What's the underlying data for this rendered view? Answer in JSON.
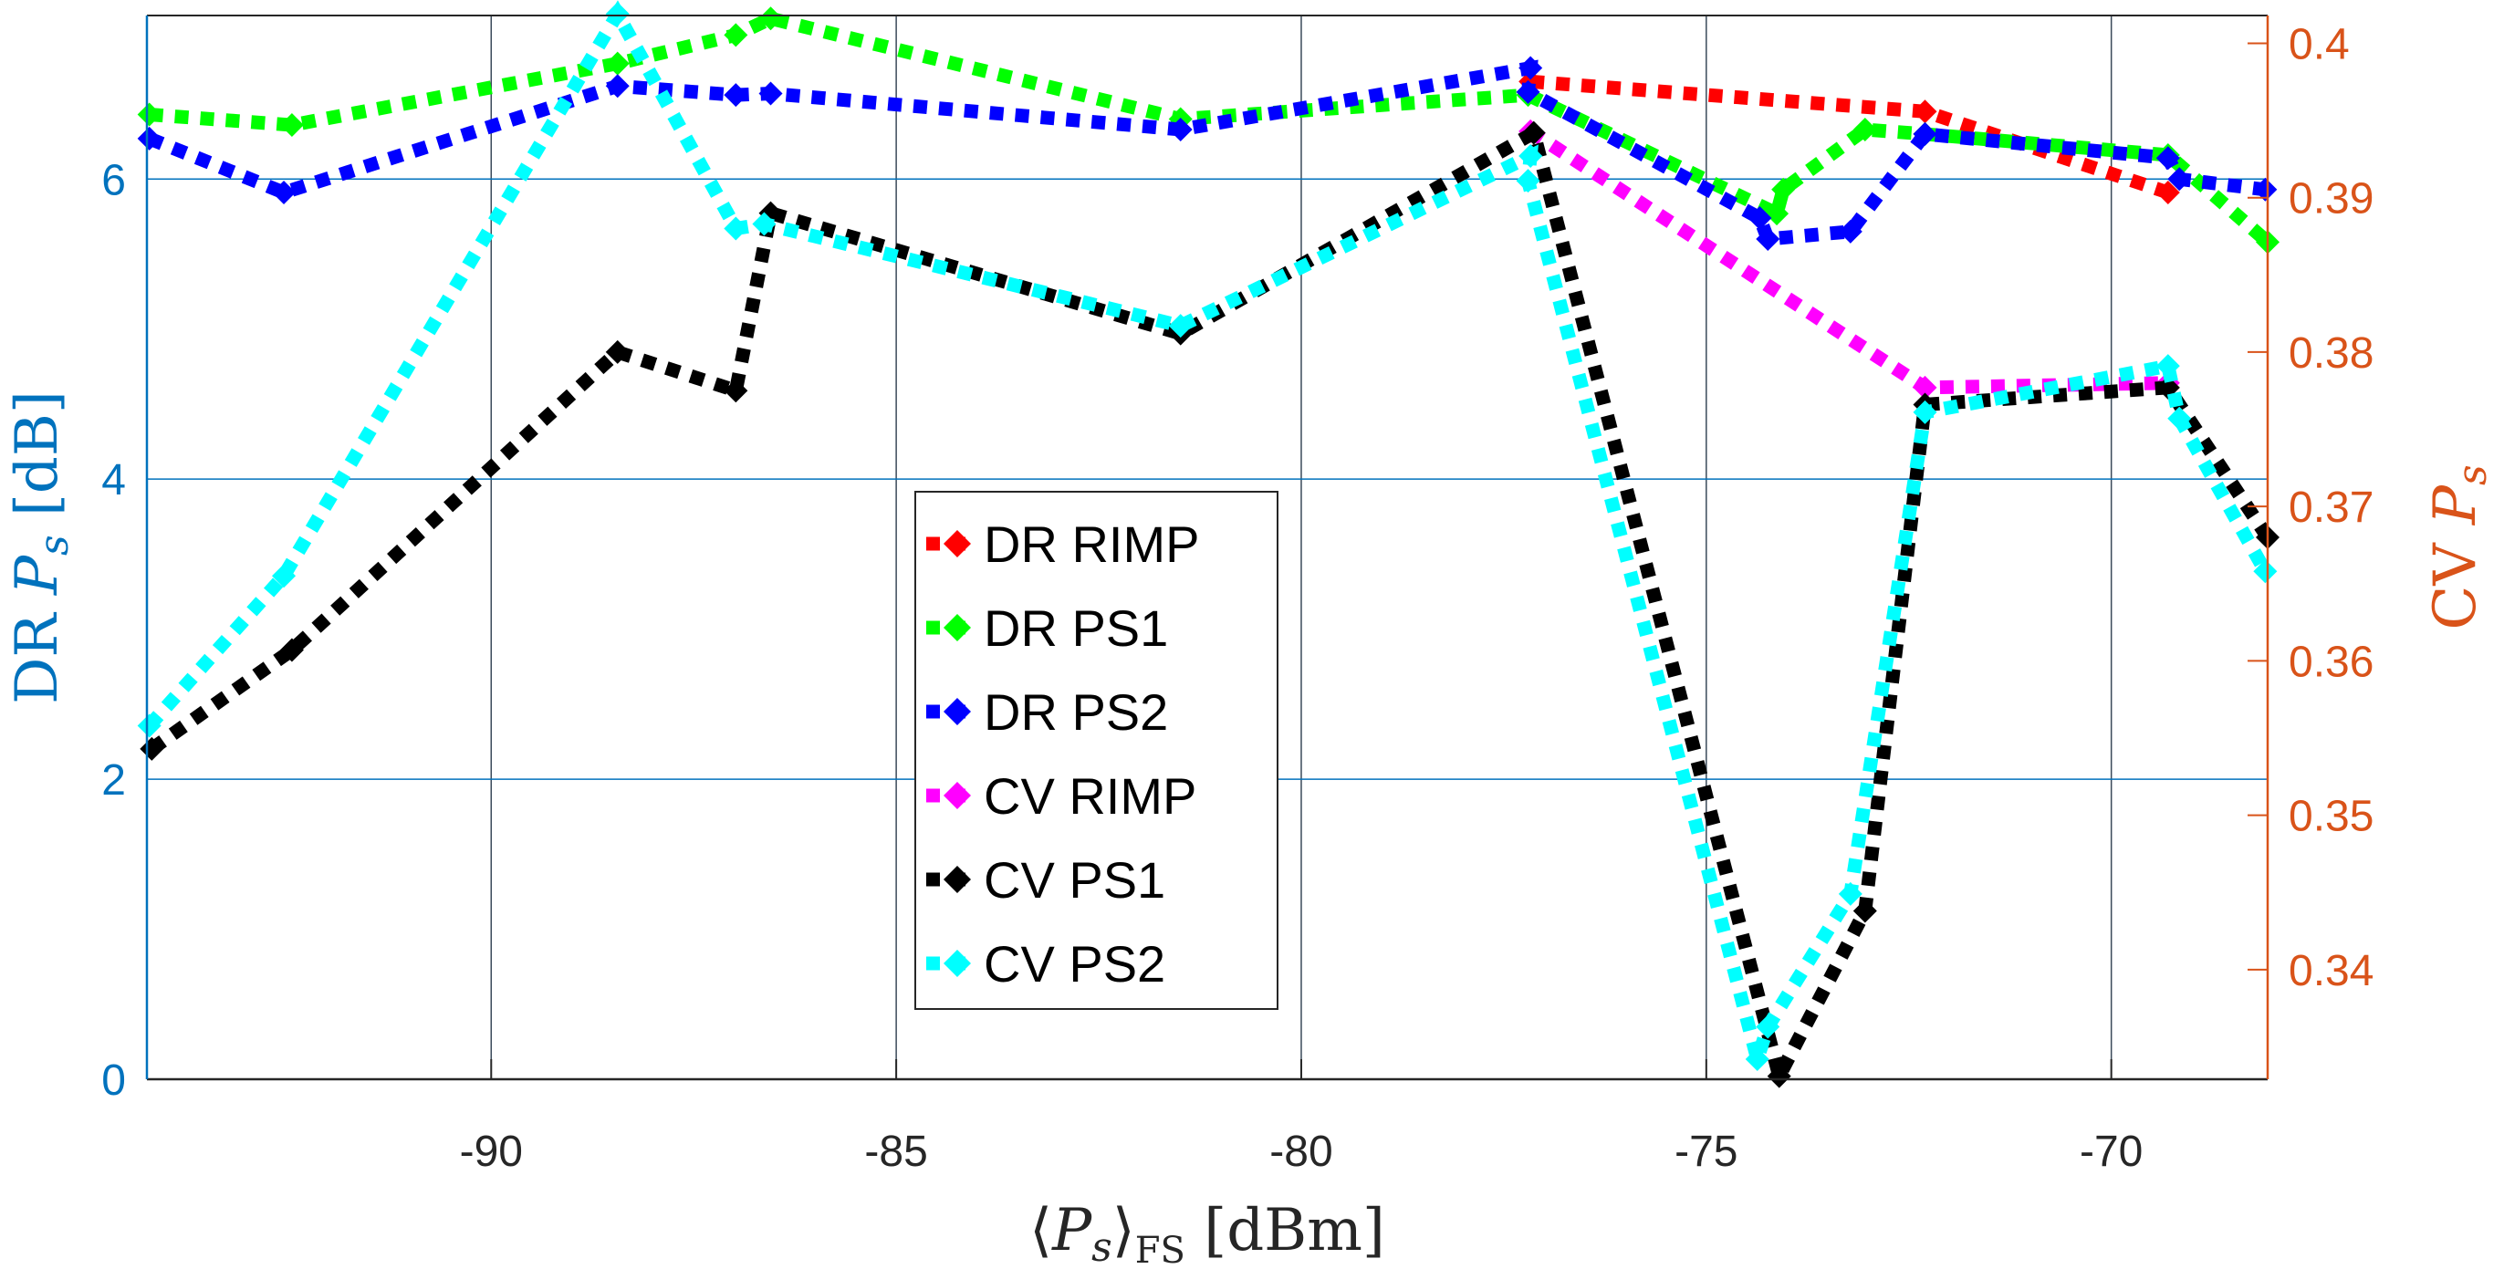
{
  "chart_data": {
    "type": "line",
    "title": "",
    "xlabel": {
      "open": "⟨",
      "var": "P",
      "sub": "s",
      "close": "⟩",
      "sub2": "FS",
      "unit": " [dBm]"
    },
    "ylabel_left": {
      "prefix": "DR ",
      "var": "P",
      "sub": "s",
      "unit": " [dB]"
    },
    "ylabel_right": {
      "prefix": "CV ",
      "var": "P",
      "sub": "s"
    },
    "xlim": [
      -94.25,
      -68.07
    ],
    "ylim_left": [
      0,
      7.09
    ],
    "ylim_right": [
      0.3329,
      0.4018
    ],
    "xticks": [
      "-90",
      "-85",
      "-80",
      "-75",
      "-70"
    ],
    "xtick_values": [
      -90,
      -85,
      -80,
      -75,
      -70
    ],
    "yticks_left": [
      "0",
      "2",
      "4",
      "6"
    ],
    "ytick_left_values": [
      0,
      2,
      4,
      6
    ],
    "yticks_right": [
      "0.34",
      "0.35",
      "0.36",
      "0.37",
      "0.38",
      "0.39",
      "0.4"
    ],
    "ytick_right_values": [
      0.34,
      0.35,
      0.36,
      0.37,
      0.38,
      0.39,
      0.4
    ],
    "grid": true,
    "legend_position": "center",
    "colors": {
      "left_axis": "#0072BD",
      "right_axis": "#D95319"
    },
    "series": [
      {
        "name": "DR RIMP",
        "axis": "left",
        "color": "#FF0000",
        "x": [
          -77.17,
          -72.3,
          -69.3
        ],
        "y": [
          6.65,
          6.45,
          5.91
        ]
      },
      {
        "name": "DR PS1",
        "axis": "left",
        "color": "#00FF00",
        "x": [
          -94.22,
          -92.46,
          -88.44,
          -86.98,
          -86.55,
          -81.49,
          -77.2,
          -74.13,
          -74.05,
          -73.04,
          -72.3,
          -69.3,
          -68.07
        ],
        "y": [
          6.43,
          6.36,
          6.77,
          6.96,
          7.07,
          6.4,
          6.56,
          5.77,
          5.93,
          6.33,
          6.3,
          6.16,
          5.58
        ]
      },
      {
        "name": "DR PS2",
        "axis": "left",
        "color": "#0000FF",
        "x": [
          -94.22,
          -92.56,
          -88.44,
          -86.98,
          -86.55,
          -81.49,
          -77.17,
          -77.2,
          -74.34,
          -74.24,
          -73.22,
          -72.3,
          -69.3,
          -69.16,
          -68.1
        ],
        "y": [
          6.27,
          5.91,
          6.62,
          6.56,
          6.57,
          6.33,
          6.74,
          6.58,
          5.74,
          5.6,
          5.65,
          6.3,
          6.14,
          6.0,
          5.93
        ]
      },
      {
        "name": "CV RIMP",
        "axis": "right",
        "color": "#FF00FF",
        "x": [
          -77.17,
          -72.3,
          -69.3
        ],
        "y": [
          0.3943,
          0.3777,
          0.378
        ]
      },
      {
        "name": "CV PS1",
        "axis": "right",
        "color": "#000000",
        "x": [
          -94.19,
          -92.46,
          -88.44,
          -86.98,
          -86.55,
          -81.49,
          -77.13,
          -74.1,
          -73.04,
          -72.3,
          -69.3,
          -68.07
        ],
        "y": [
          0.3543,
          0.3607,
          0.38,
          0.3775,
          0.389,
          0.3812,
          0.3942,
          0.3331,
          0.3438,
          0.3766,
          0.3777,
          0.368
        ]
      },
      {
        "name": "CV PS2",
        "axis": "right",
        "color": "#00FFFF",
        "x": [
          -94.22,
          -92.56,
          -88.44,
          -86.98,
          -86.63,
          -81.49,
          -77.17,
          -77.2,
          -74.37,
          -74.24,
          -73.22,
          -72.3,
          -69.3,
          -69.16,
          -68.1
        ],
        "y": [
          0.3558,
          0.3655,
          0.4019,
          0.388,
          0.3883,
          0.3817,
          0.3927,
          0.3911,
          0.3342,
          0.3363,
          0.3449,
          0.3761,
          0.3791,
          0.3757,
          0.3658
        ]
      }
    ]
  }
}
